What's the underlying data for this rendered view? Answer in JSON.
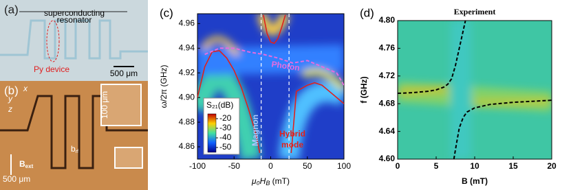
{
  "figure": {
    "a": {
      "label": "(a)",
      "resonator": [
        "superconducting",
        "resonator"
      ],
      "device": "Py device",
      "scale": "500 μm"
    },
    "b": {
      "label": "(b)",
      "x": "x",
      "y": "y",
      "z": "z",
      "inset_scale": "100 μm",
      "field": "B",
      "field_sub": "ext",
      "rf": "b",
      "rf_sub": "rf",
      "scale": "500 μm"
    }
  },
  "chart_data": [
    {
      "type": "line",
      "panel": "(c)",
      "ylabel": "ω/2π (GHz)",
      "xlabel": {
        "pre": "μ₀H",
        "sub": "B",
        "post": " (mT)"
      },
      "xlim": [
        -100,
        100
      ],
      "ylim": [
        4.85,
        4.968
      ],
      "xticks": [
        -100,
        -50,
        0,
        50,
        100
      ],
      "yticks": [
        4.86,
        4.88,
        {
          "value": 4.9,
          "label": "4.90"
        },
        4.92,
        4.94,
        4.96
      ],
      "colorbar": {
        "title": "S₂₁(dB)",
        "lim": [
          -55,
          -15
        ],
        "ticks": [
          -20,
          -30,
          -40,
          -50
        ]
      },
      "annotations": [
        "Magnon",
        "Photon",
        "Hybrid",
        "mode"
      ],
      "vlines": [
        -13,
        25
      ],
      "series": [
        {
          "color": "#e0201c",
          "dash": false,
          "x": [
            -100,
            -90,
            -80,
            -70,
            -60,
            -50,
            -40,
            -30,
            -20,
            -15
          ],
          "values": [
            4.9,
            4.925,
            4.937,
            4.938,
            4.932,
            4.922,
            4.908,
            4.89,
            4.87,
            4.855
          ]
        },
        {
          "color": "#e0201c",
          "dash": false,
          "x": [
            -10,
            -5,
            0,
            5,
            10,
            15,
            20
          ],
          "values": [
            4.967,
            4.952,
            4.945,
            4.944,
            4.948,
            4.957,
            4.967
          ]
        },
        {
          "color": "#e0201c",
          "dash": false,
          "x": [
            28,
            35,
            50,
            60,
            70,
            80,
            90,
            100
          ],
          "values": [
            4.855,
            4.905,
            4.91,
            4.912,
            4.91,
            4.905,
            4.9,
            4.895
          ]
        },
        {
          "color": "#e66be0",
          "dash": true,
          "x": [
            -90,
            -70,
            -50,
            -30,
            -10,
            10,
            30,
            50,
            70,
            90,
            100
          ],
          "values": [
            4.935,
            4.94,
            4.94,
            4.937,
            4.935,
            4.932,
            4.928,
            4.93,
            4.925,
            4.92,
            4.91
          ]
        }
      ]
    },
    {
      "type": "line",
      "panel": "(d)",
      "title": "Experiment",
      "ylabel": "f (GHz)",
      "xlabel": "B (mT)",
      "xlim": [
        0,
        20
      ],
      "ylim": [
        4.6,
        4.8
      ],
      "xticks": [
        0,
        5,
        10,
        15,
        20
      ],
      "yticks": [
        {
          "value": 4.6,
          "label": "4.60"
        },
        4.64,
        4.68,
        4.72,
        4.76,
        {
          "value": 4.8,
          "label": "4.80"
        }
      ],
      "series": [
        {
          "color": "#000000",
          "dash": true,
          "x": [
            0,
            2,
            4,
            5,
            6,
            6.5,
            7,
            7.5,
            8,
            8.5,
            8.8,
            8.9,
            7.3,
            7.6,
            8,
            8.5,
            9,
            10,
            12,
            15,
            20
          ],
          "values": [
            4.695,
            4.696,
            4.698,
            4.7,
            4.704,
            4.708,
            4.716,
            4.735,
            4.76,
            4.785,
            4.8,
            null,
            4.6,
            4.62,
            4.645,
            4.66,
            4.668,
            4.674,
            4.679,
            4.682,
            4.685
          ]
        }
      ]
    }
  ]
}
